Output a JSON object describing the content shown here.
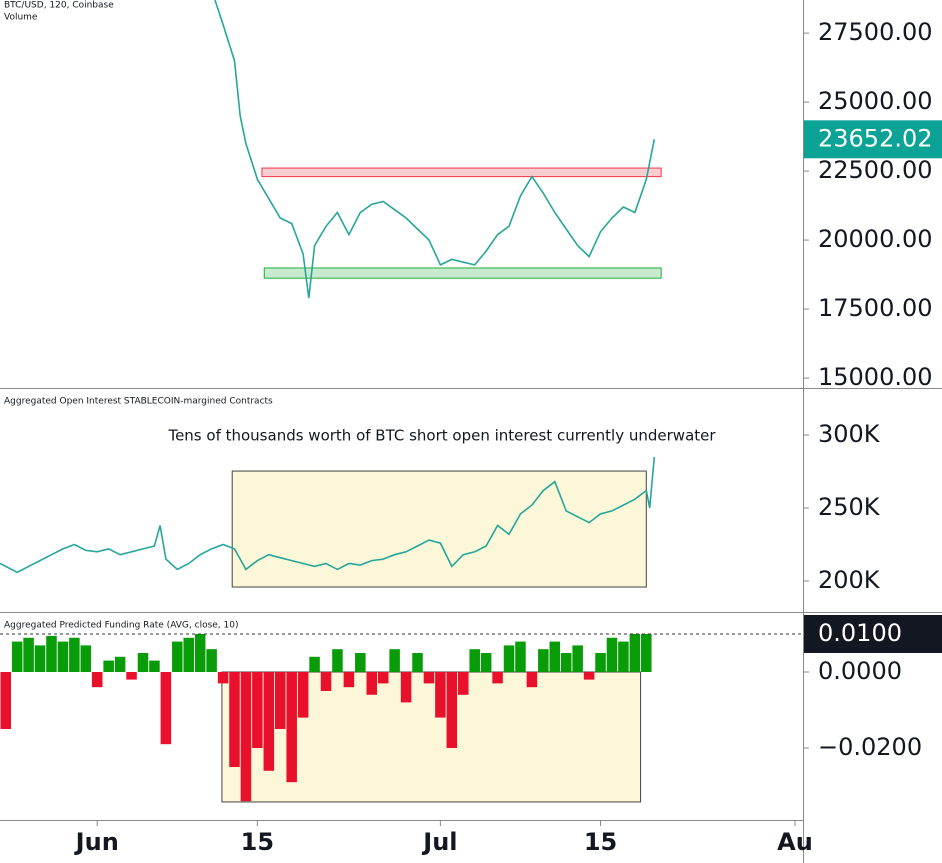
{
  "chart_data": [
    {
      "type": "line",
      "title": "BTC/USD, 120, Coinbase",
      "subtitle": "Volume",
      "color": "#26a69a",
      "x": [
        10.3,
        11,
        12,
        12.5,
        13,
        14,
        15,
        16,
        17,
        18,
        18.5,
        19,
        20,
        21,
        22,
        23,
        24,
        25,
        26,
        27,
        28,
        29,
        30,
        31,
        32,
        33,
        34,
        35,
        36,
        37,
        38,
        39,
        40,
        41,
        42,
        43,
        44,
        45,
        46,
        47,
        48,
        48.7
      ],
      "values": [
        28700,
        27800,
        26500,
        24500,
        23500,
        22200,
        21500,
        20800,
        20600,
        19500,
        17900,
        19800,
        20500,
        21000,
        20200,
        21000,
        21300,
        21400,
        21100,
        20800,
        20400,
        20000,
        19100,
        19300,
        19200,
        19100,
        19600,
        20200,
        20500,
        21600,
        22300,
        21700,
        21000,
        20400,
        19800,
        19400,
        20300,
        20800,
        21200,
        21000,
        22200,
        23652.02
      ],
      "xlim": [
        -8.5,
        61.7
      ],
      "ylim": [
        14640,
        28700
      ],
      "yticks": [
        {
          "value": 27500,
          "label": "27500.00"
        },
        {
          "value": 25000,
          "label": "25000.00"
        },
        {
          "value": 22500,
          "label": "22500.00"
        },
        {
          "value": 20000,
          "label": "20000.00"
        },
        {
          "value": 17500,
          "label": "17500.00"
        },
        {
          "value": 15000,
          "label": "15000.00"
        }
      ],
      "current_value": 23652.02,
      "current_color": "#0aa396",
      "zones": [
        {
          "x": [
            14.4,
            49.3
          ],
          "y": [
            22300,
            22610
          ],
          "color": "#f23645"
        },
        {
          "x": [
            14.6,
            49.3
          ],
          "y": [
            18620,
            18990
          ],
          "color": "#22ab3a"
        }
      ]
    },
    {
      "type": "line",
      "title": "Aggregated Open Interest STABLECOIN-margined Contracts",
      "color": "#26a69a",
      "annotation": "Tens of thousands worth of BTC short open interest currently underwater",
      "x": [
        -8.5,
        -7,
        -6,
        -5,
        -4,
        -3,
        -2,
        -1,
        0,
        1,
        2,
        3,
        4,
        5,
        5.5,
        6,
        7,
        8,
        9,
        10,
        11,
        12,
        13,
        14,
        15,
        16,
        17,
        18,
        19,
        20,
        21,
        22,
        23,
        24,
        25,
        26,
        27,
        28,
        29,
        30,
        31,
        32,
        33,
        34,
        35,
        36,
        37,
        38,
        39,
        40,
        41,
        42,
        43,
        44,
        45,
        46,
        47,
        48,
        48.3,
        48.7
      ],
      "values": [
        212000,
        206000,
        210000,
        214000,
        218000,
        222000,
        225000,
        221000,
        220000,
        222000,
        218000,
        220000,
        222000,
        224000,
        238000,
        215000,
        208000,
        212000,
        218000,
        222000,
        225000,
        222000,
        208000,
        214000,
        218000,
        216000,
        214000,
        212000,
        210000,
        212000,
        208000,
        212000,
        211000,
        214000,
        215000,
        218000,
        220000,
        224000,
        228000,
        226000,
        210000,
        218000,
        220000,
        224000,
        238000,
        232000,
        246000,
        252000,
        262000,
        268000,
        248000,
        244000,
        240000,
        246000,
        248000,
        252000,
        256000,
        262000,
        250000,
        285000
      ],
      "xlim": [
        -8.5,
        61.7
      ],
      "ylim": [
        178800,
        330800
      ],
      "yticks": [
        {
          "value": 300000,
          "label": "300K"
        },
        {
          "value": 250000,
          "label": "250K"
        },
        {
          "value": 200000,
          "label": "200K"
        }
      ],
      "zones": [
        {
          "x": [
            11.8,
            48.0
          ],
          "y": [
            195900,
            275300
          ],
          "color": "#444444"
        }
      ]
    },
    {
      "type": "bar",
      "title": "Aggregated Predicted Funding Rate (AVG, close, 10)",
      "color_positive": "#089c08",
      "color_negative": "#e8102a",
      "x": [
        -8,
        -7,
        -6,
        -5,
        -4,
        -3,
        -2,
        -1,
        0,
        1,
        2,
        3,
        4,
        5,
        6,
        7,
        8,
        9,
        10,
        11,
        12,
        13,
        14,
        15,
        16,
        17,
        18,
        19,
        20,
        21,
        22,
        23,
        24,
        25,
        26,
        27,
        28,
        29,
        30,
        31,
        32,
        33,
        34,
        35,
        36,
        37,
        38,
        39,
        40,
        41,
        42,
        43,
        44,
        45,
        46,
        47,
        48
      ],
      "values": [
        -0.015,
        0.008,
        0.009,
        0.007,
        0.0095,
        0.008,
        0.009,
        0.007,
        -0.004,
        0.003,
        0.004,
        -0.002,
        0.005,
        0.003,
        -0.019,
        0.008,
        0.009,
        0.01,
        0.006,
        -0.003,
        -0.025,
        -0.034,
        -0.02,
        -0.026,
        -0.015,
        -0.029,
        -0.012,
        0.004,
        -0.005,
        0.006,
        -0.004,
        0.005,
        -0.006,
        -0.003,
        0.006,
        -0.008,
        0.005,
        -0.003,
        -0.012,
        -0.02,
        -0.006,
        0.006,
        0.005,
        -0.003,
        0.007,
        0.008,
        -0.004,
        0.006,
        0.008,
        0.005,
        0.007,
        -0.002,
        0.005,
        0.009,
        0.008,
        0.01,
        0.01
      ],
      "xlim": [
        -8.5,
        61.7
      ],
      "ylim": [
        -0.03895,
        0.01526
      ],
      "yticks": [
        {
          "value": 0,
          "label": "0.0000"
        },
        {
          "value": -0.02,
          "label": "−0.0200"
        }
      ],
      "current_value": {
        "value": 0.01,
        "label": "0.0100"
      },
      "current_color": "#131722",
      "zones": [
        {
          "x": [
            10.9,
            47.5
          ],
          "y": [
            -0.0342,
            0
          ],
          "color": "#444444"
        }
      ],
      "xticks": [
        {
          "value": 0,
          "label": "Jun"
        },
        {
          "value": 14,
          "label": "15"
        },
        {
          "value": 30,
          "label": "Jul"
        },
        {
          "value": 44,
          "label": "15"
        },
        {
          "value": 61,
          "label": "Au"
        }
      ]
    }
  ]
}
